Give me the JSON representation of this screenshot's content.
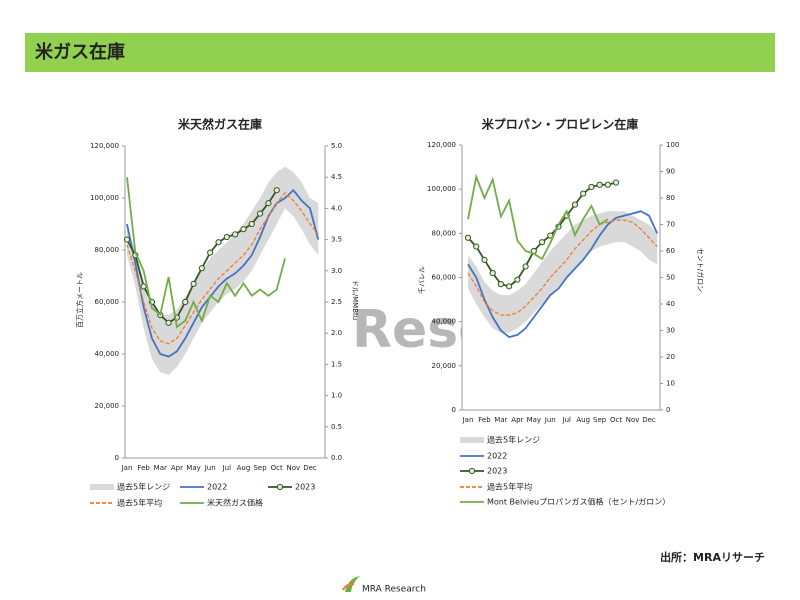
{
  "header": {
    "title": "米ガス在庫"
  },
  "watermark": "Research",
  "source": "出所：MRAリサーチ",
  "logo": "MRA Research",
  "chart_data": [
    {
      "type": "line",
      "title": "米天然ガス在庫",
      "y_label": "百万立方メートル",
      "y2_label": "ドル/MMBtu",
      "categories": [
        "Jan",
        null,
        "Feb",
        null,
        "Mar",
        null,
        "Apr",
        null,
        "May",
        null,
        "Jun",
        null,
        "Jul",
        null,
        "Aug",
        null,
        "Sep",
        null,
        "Oct",
        null,
        "Nov",
        null,
        "Dec",
        null
      ],
      "ylim": [
        0,
        120000
      ],
      "yticks": [
        0,
        {
          "value": 20000,
          "label": "20,000"
        },
        {
          "value": 40000,
          "label": "40,000"
        },
        {
          "value": 60000,
          "label": "60,000"
        },
        {
          "value": 80000,
          "label": "80,000"
        },
        {
          "value": 100000,
          "label": "100,000"
        },
        {
          "value": 120000,
          "label": "120,000"
        }
      ],
      "y2lim": [
        0,
        5
      ],
      "y2ticks": [
        {
          "value": 0,
          "label": "0.0"
        },
        0.5,
        {
          "value": 1,
          "label": "1.0"
        },
        1.5,
        {
          "value": 2,
          "label": "2.0"
        },
        2.5,
        {
          "value": 3,
          "label": "3.0"
        },
        3.5,
        {
          "value": 4,
          "label": "4.0"
        },
        4.5,
        {
          "value": 5,
          "label": "5.0"
        }
      ],
      "series": [
        {
          "name": "過去5年レンジ",
          "color": "#d9d9d9",
          "band": true,
          "low": [
            78000,
            66000,
            50000,
            38000,
            33000,
            32000,
            35000,
            40000,
            46000,
            52000,
            56000,
            60000,
            63000,
            65000,
            68000,
            72000,
            78000,
            84000,
            90000,
            96000,
            93000,
            88000,
            82000,
            78000
          ],
          "high": [
            88000,
            80000,
            68000,
            60000,
            55000,
            55000,
            57000,
            62000,
            67000,
            72000,
            77000,
            80000,
            83000,
            86000,
            90000,
            95000,
            100000,
            106000,
            110000,
            112000,
            110000,
            106000,
            100000,
            98000
          ]
        },
        {
          "name": "2022",
          "color": "#4472c4",
          "values": [
            90000,
            75000,
            58000,
            46000,
            40000,
            39000,
            41000,
            46000,
            52000,
            58000,
            62000,
            66000,
            69000,
            71000,
            74000,
            78000,
            85000,
            93000,
            98000,
            100000,
            103000,
            99000,
            96000,
            84000
          ]
        },
        {
          "name": "2023",
          "color": "#375623",
          "markers": true,
          "values": [
            84000,
            78000,
            66000,
            60000,
            55000,
            52000,
            54000,
            60000,
            67000,
            73000,
            79000,
            83000,
            85000,
            86000,
            88000,
            90000,
            94000,
            98000,
            103000,
            null,
            null,
            null,
            null,
            null
          ]
        },
        {
          "name": "過去5年平均",
          "color": "#ed7d31",
          "dash": true,
          "values": [
            82000,
            72000,
            60000,
            50000,
            45000,
            44000,
            46000,
            51000,
            56000,
            61000,
            65000,
            69000,
            72000,
            75000,
            78000,
            82000,
            88000,
            93000,
            98000,
            102000,
            99000,
            95000,
            90000,
            86000
          ]
        },
        {
          "name": "米天然ガス価格",
          "color": "#70ad47",
          "axis": "y2",
          "values": [
            4.5,
            3.3,
            3.0,
            2.4,
            2.3,
            2.9,
            2.1,
            2.2,
            2.5,
            2.2,
            2.6,
            2.5,
            2.8,
            2.6,
            2.8,
            2.6,
            2.7,
            2.6,
            2.7,
            3.2,
            null,
            null,
            null,
            null
          ]
        }
      ]
    },
    {
      "type": "line",
      "title": "米プロパン・プロピレン在庫",
      "y_label": "千バレル",
      "y2_label": "セント/ガロン",
      "categories": [
        "Jan",
        null,
        "Feb",
        null,
        "Mar",
        null,
        "Apr",
        null,
        "May",
        null,
        "Jun",
        null,
        "Jul",
        null,
        "Aug",
        null,
        "Sep",
        null,
        "Oct",
        null,
        "Nov",
        null,
        "Dec",
        null
      ],
      "ylim": [
        0,
        120000
      ],
      "yticks": [
        0,
        {
          "value": 20000,
          "label": "20,000"
        },
        {
          "value": 40000,
          "label": "40,000"
        },
        {
          "value": 60000,
          "label": "60,000"
        },
        {
          "value": 80000,
          "label": "80,000"
        },
        {
          "value": 100000,
          "label": "100,000"
        },
        {
          "value": 120000,
          "label": "120,000"
        }
      ],
      "y2lim": [
        0,
        100
      ],
      "y2ticks": [
        0,
        10,
        20,
        30,
        40,
        50,
        60,
        70,
        80,
        90,
        100
      ],
      "series": [
        {
          "name": "過去5年レンジ",
          "color": "#d9d9d9",
          "band": true,
          "low": [
            55000,
            48000,
            42000,
            37000,
            35000,
            35000,
            37000,
            40000,
            44000,
            48000,
            52000,
            56000,
            60000,
            64000,
            68000,
            72000,
            74000,
            75000,
            76000,
            76000,
            74000,
            72000,
            68000,
            66000
          ],
          "high": [
            70000,
            65000,
            58000,
            54000,
            52000,
            52000,
            54000,
            57000,
            62000,
            67000,
            72000,
            76000,
            80000,
            84000,
            86000,
            88000,
            89000,
            90000,
            90000,
            90000,
            88000,
            86000,
            84000,
            80000
          ]
        },
        {
          "name": "2022",
          "color": "#4472c4",
          "values": [
            66000,
            60000,
            50000,
            42000,
            36000,
            33000,
            34000,
            37000,
            42000,
            47000,
            52000,
            55000,
            60000,
            64000,
            68000,
            73000,
            79000,
            84000,
            87000,
            88000,
            89000,
            90000,
            88000,
            80000
          ]
        },
        {
          "name": "2023",
          "color": "#375623",
          "markers": true,
          "values": [
            78000,
            74000,
            68000,
            62000,
            57000,
            56000,
            59000,
            65000,
            72000,
            76000,
            79000,
            83000,
            88000,
            93000,
            98000,
            101000,
            102000,
            102000,
            103000,
            null,
            null,
            null,
            null,
            null
          ]
        },
        {
          "name": "過去5年平均",
          "color": "#ed7d31",
          "dash": true,
          "values": [
            62000,
            56000,
            49000,
            45000,
            43000,
            43000,
            44000,
            47000,
            51000,
            55000,
            60000,
            64000,
            68000,
            73000,
            77000,
            81000,
            84000,
            85000,
            86000,
            86000,
            85000,
            82000,
            78000,
            74000
          ]
        },
        {
          "name": "Mont Belvieuプロパンガス価格（セント/ガロン）",
          "color": "#70ad47",
          "axis": "y2",
          "values": [
            72,
            88,
            80,
            87,
            73,
            79,
            64,
            60,
            59,
            57,
            63,
            70,
            75,
            66,
            72,
            77,
            70,
            72,
            null,
            null,
            null,
            null,
            null,
            null
          ]
        }
      ]
    }
  ]
}
